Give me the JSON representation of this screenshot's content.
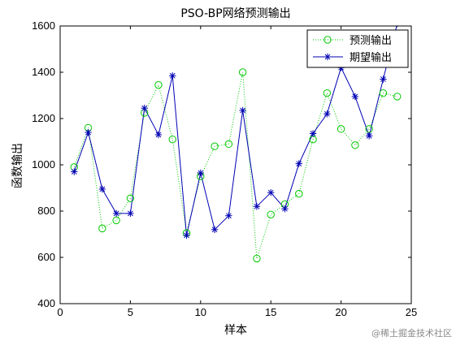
{
  "chart_data": {
    "type": "line",
    "title": "PSO-BP网络预测输出",
    "xlabel": "样本",
    "ylabel": "函数输出",
    "xlim": [
      0,
      25
    ],
    "ylim": [
      400,
      1600
    ],
    "xticks": [
      0,
      5,
      10,
      15,
      20,
      25
    ],
    "yticks": [
      400,
      600,
      800,
      1000,
      1200,
      1400,
      1600
    ],
    "grid": false,
    "legend_position": "top-right",
    "x": [
      1,
      2,
      3,
      4,
      5,
      6,
      7,
      8,
      9,
      10,
      11,
      12,
      13,
      14,
      15,
      16,
      17,
      18,
      19,
      20,
      21,
      22,
      23,
      24
    ],
    "series": [
      {
        "name": "预测输出",
        "color": "#00c800",
        "style": "dotted-line-circle",
        "values": [
          990,
          1160,
          725,
          760,
          855,
          1225,
          1345,
          1110,
          705,
          950,
          1080,
          1090,
          1400,
          595,
          785,
          830,
          875,
          1110,
          1310,
          1155,
          1085,
          1155,
          1310,
          1295
        ]
      },
      {
        "name": "期望输出",
        "color": "#0000b4",
        "style": "solid-line-star",
        "values": [
          970,
          1140,
          895,
          790,
          790,
          1245,
          1130,
          1385,
          695,
          965,
          720,
          780,
          1235,
          820,
          880,
          810,
          1005,
          1135,
          1220,
          1420,
          1295,
          1125,
          1370,
          1610
        ]
      }
    ]
  },
  "watermark": "@稀土掘金技术社区"
}
